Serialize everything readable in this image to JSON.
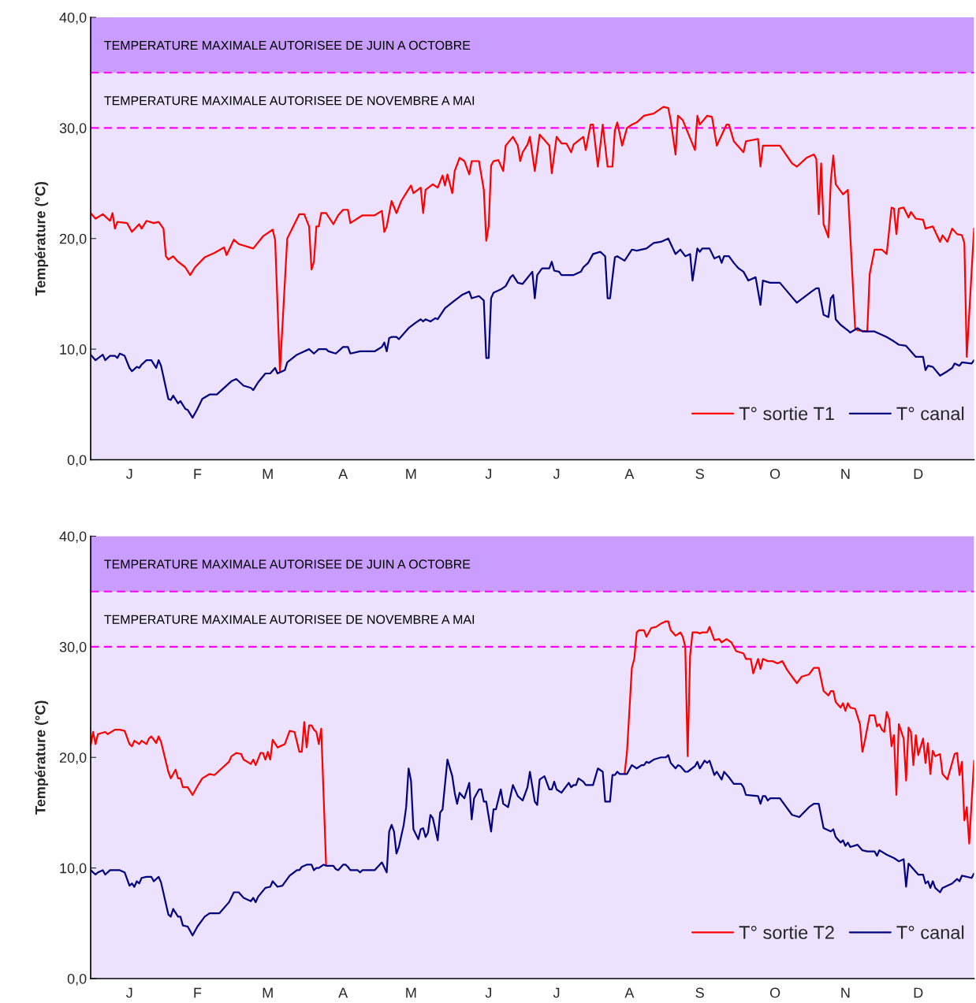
{
  "chart_data": [
    {
      "type": "line",
      "ylabel": "Température (°C)",
      "ylim": [
        0,
        40
      ],
      "categories": [
        null,
        null,
        null,
        null,
        null,
        null,
        null,
        null,
        null,
        null,
        null,
        null,
        null,
        null,
        null,
        null,
        "J",
        null,
        null,
        null,
        null,
        null,
        null,
        null,
        null,
        null,
        null,
        null,
        null,
        null,
        null,
        null,
        null,
        null,
        null,
        null,
        null,
        null,
        null,
        null,
        null,
        null,
        null,
        null,
        "F",
        null,
        null,
        null,
        null,
        null,
        null,
        null,
        null,
        null,
        null,
        null,
        null,
        null,
        null,
        null,
        null,
        null,
        null,
        null,
        null,
        null,
        null,
        null,
        null,
        null,
        null,
        null,
        null,
        "M",
        null,
        null,
        null,
        null,
        null,
        null,
        null,
        null,
        null,
        null,
        null,
        null,
        null,
        null,
        null,
        null,
        null,
        null,
        null,
        null,
        null,
        null,
        null,
        null,
        null,
        null,
        null,
        null,
        null,
        null,
        "A",
        null,
        null,
        null,
        null,
        null,
        null,
        null,
        null,
        null,
        null,
        null,
        null,
        null,
        null,
        null,
        null,
        null,
        null,
        null,
        null,
        null,
        null,
        null,
        null,
        null,
        null,
        null,
        "M",
        null,
        null,
        null,
        null,
        null,
        null,
        null,
        null,
        null,
        null,
        null,
        null,
        null,
        null,
        null,
        null,
        null,
        null,
        null,
        null,
        null,
        null,
        null,
        null,
        null,
        null,
        null,
        null,
        null,
        null,
        null,
        "J",
        null,
        null,
        null,
        null,
        null,
        null,
        null,
        null,
        null,
        null,
        null,
        null,
        null,
        null,
        null,
        null,
        null,
        null,
        null,
        null,
        null,
        null,
        null,
        null,
        null,
        null,
        null,
        "J",
        null,
        null,
        null,
        null,
        null,
        null,
        null,
        null,
        null,
        null,
        null,
        null,
        null,
        null,
        null,
        null,
        null,
        null,
        null,
        null,
        null,
        null,
        null,
        null,
        null,
        null,
        null,
        null,
        null,
        "A",
        null,
        null,
        null,
        null,
        null,
        null,
        null,
        null,
        null,
        null,
        null,
        null,
        null,
        null,
        null,
        null,
        null,
        null,
        null,
        null,
        null,
        null,
        null,
        null,
        null,
        null,
        null,
        null,
        "S",
        null,
        null,
        null,
        null,
        null,
        null,
        null,
        null,
        null,
        null,
        null,
        null,
        null,
        null,
        null,
        null,
        null,
        null,
        null,
        null,
        null,
        null,
        null,
        null,
        null,
        null,
        null,
        null,
        null,
        null,
        "O",
        null,
        null,
        null,
        null,
        null,
        null,
        null,
        null,
        null,
        null,
        null,
        null,
        null,
        null,
        null,
        null,
        null,
        null,
        null,
        null,
        null,
        null,
        null,
        null,
        null,
        null,
        null,
        null,
        "N",
        null,
        null,
        null,
        null,
        null,
        null,
        null,
        null,
        null,
        null,
        null,
        null,
        null,
        null,
        null,
        null,
        null,
        null,
        null,
        null,
        null,
        null,
        null,
        null,
        null,
        null,
        null,
        null,
        null,
        "D",
        null,
        null,
        null,
        null,
        null,
        null,
        null,
        null,
        null,
        null,
        null,
        null,
        null,
        null,
        null,
        null,
        null,
        null,
        null,
        null,
        null,
        null,
        null
      ],
      "yticks": [
        {
          "value": 0,
          "label": "0,0"
        },
        {
          "value": 10,
          "label": "10,0"
        },
        {
          "value": 20,
          "label": "20,0"
        },
        {
          "value": 30,
          "label": "30,0"
        },
        {
          "value": 40,
          "label": "40,0"
        }
      ],
      "legend": "bottom right",
      "grid": false,
      "marker": "none",
      "bands": [
        {
          "axis": "y",
          "from": 35,
          "to": 40,
          "color": "#c99cff"
        }
      ],
      "ref_lines": [
        {
          "axis": "y",
          "value": 35,
          "label": "TEMPERATURE MAXIMALE AUTORISEE DE JUIN A OCTOBRE",
          "color": "#ff00ff",
          "line_style": "dashed"
        },
        {
          "axis": "y",
          "value": 30,
          "label": "TEMPERATURE MAXIMALE AUTORISEE DE NOVEMBRE A MAI",
          "color": "#ff00ff",
          "line_style": "dashed"
        }
      ],
      "series": [
        {
          "name": "T° sortie T1",
          "color": "#ff0000",
          "values": [
            22.3,
            null,
            21.8,
            null,
            null,
            22.2,
            null,
            null,
            21.6,
            22.3,
            20.9,
            21.5,
            null,
            null,
            null,
            21.4,
            null,
            20.6,
            null,
            null,
            21.3,
            20.9,
            null,
            21.6,
            null,
            null,
            21.4,
            null,
            21.5,
            null,
            20.9,
            18.4,
            18.1,
            null,
            18.4,
            null,
            17.9,
            null,
            null,
            17.4,
            null,
            16.7,
            null,
            17.4,
            null,
            null,
            null,
            18.3,
            null,
            null,
            null,
            18.7,
            null,
            null,
            null,
            19.2,
            18.5,
            null,
            null,
            19.9,
            null,
            19.5,
            null,
            null,
            null,
            null,
            null,
            19.1,
            null,
            null,
            null,
            20.2,
            null,
            null,
            null,
            20.8,
            19.9,
            null,
            8.0,
            null,
            null,
            20.0,
            null,
            null,
            null,
            null,
            22.2,
            null,
            22.2,
            null,
            21.1,
            17.2,
            17.9,
            21.1,
            21.1,
            22.3,
            null,
            22.3,
            null,
            null,
            21.3,
            null,
            22.1,
            null,
            22.6,
            null,
            22.6,
            21.4,
            null,
            null,
            null,
            null,
            22.1,
            null,
            null,
            null,
            null,
            22.1,
            null,
            null,
            22.5,
            20.6,
            21.1,
            null,
            23.4,
            null,
            22.3,
            null,
            23.4,
            null,
            24.1,
            null,
            24.8,
            24.1,
            null,
            null,
            24.6,
            22.3,
            24.4,
            null,
            null,
            24.9,
            null,
            24.6,
            null,
            25.7,
            24.8,
            25.8,
            null,
            24.1,
            26.1,
            null,
            27.3,
            null,
            27.0,
            null,
            25.8,
            27.0,
            null,
            null,
            27.0,
            null,
            24.4,
            19.8,
            21.1,
            26.6,
            27.0,
            null,
            27.1,
            null,
            26.1,
            28.4,
            null,
            null,
            29.2,
            null,
            28.4,
            27.0,
            27.8,
            null,
            28.5,
            29.2,
            null,
            26.1,
            null,
            29.4,
            null,
            null,
            null,
            28.4,
            25.9,
            null,
            29.2,
            null,
            28.6,
            null,
            28.6,
            null,
            27.8,
            28.5,
            null,
            null,
            null,
            29.2,
            28.0,
            null,
            30.3,
            30.3,
            null,
            26.5,
            null,
            30.3,
            null,
            26.5,
            null,
            26.5,
            29.8,
            30.5,
            null,
            28.4,
            null,
            30.0,
            null,
            30.3,
            null,
            30.5,
            null,
            null,
            31.1,
            null,
            null,
            null,
            31.3,
            null,
            null,
            null,
            31.9,
            null,
            31.8,
            30.7,
            null,
            27.6,
            31.1,
            null,
            30.7,
            null,
            null,
            null,
            null,
            28.0,
            31.1,
            30.3,
            null,
            null,
            31.1,
            null,
            31.0,
            null,
            28.4,
            null,
            null,
            null,
            30.3,
            30.3,
            null,
            28.8,
            null,
            null,
            null,
            27.8,
            28.8,
            null,
            null,
            null,
            null,
            29.0,
            26.5,
            28.4,
            null,
            null,
            null,
            null,
            null,
            null,
            28.4,
            null,
            null,
            null,
            null,
            26.8,
            null,
            26.5,
            null,
            null,
            null,
            27.3,
            null,
            null,
            27.6,
            27.2,
            22.2,
            26.8,
            21.3,
            null,
            20.1,
            25.3,
            27.5,
            24.9,
            null,
            null,
            24.0,
            null,
            24.4,
            null,
            null,
            11.9,
            11.7,
            null,
            null,
            null,
            11.6,
            16.8,
            null,
            19.0,
            null,
            null,
            19.0,
            null,
            18.6,
            null,
            22.8,
            22.7,
            20.4,
            22.7,
            null,
            22.8,
            null,
            21.9,
            22.4,
            null,
            21.8,
            null,
            null,
            21.7,
            20.9,
            null,
            null,
            21.1,
            null,
            null,
            19.7,
            20.3,
            null,
            19.7,
            null,
            20.9,
            null,
            20.4,
            null,
            20.3,
            19.6,
            9.3,
            null,
            null,
            20.9
          ]
        },
        {
          "name": "T° canal",
          "color": "#000080",
          "values": [
            9.5,
            null,
            9.0,
            null,
            null,
            9.5,
            9.0,
            null,
            9.4,
            null,
            9.4,
            9.2,
            9.6,
            null,
            9.4,
            null,
            8.3,
            8.0,
            null,
            8.4,
            8.3,
            8.6,
            null,
            9.0,
            null,
            9.0,
            null,
            8.3,
            9.0,
            8.5,
            null,
            null,
            5.5,
            5.4,
            5.8,
            null,
            5.1,
            5.3,
            null,
            4.6,
            4.5,
            null,
            3.8,
            null,
            4.6,
            null,
            5.5,
            null,
            null,
            5.9,
            null,
            null,
            5.9,
            null,
            null,
            null,
            null,
            null,
            7.1,
            null,
            7.3,
            null,
            null,
            6.7,
            null,
            null,
            6.5,
            6.3,
            null,
            7.0,
            null,
            null,
            7.8,
            null,
            7.8,
            null,
            8.3,
            7.8,
            null,
            null,
            8.1,
            8.8,
            null,
            null,
            null,
            9.5,
            null,
            null,
            9.8,
            null,
            10.0,
            null,
            9.6,
            null,
            10.0,
            null,
            null,
            10.0,
            9.8,
            null,
            null,
            9.6,
            null,
            null,
            10.2,
            null,
            10.2,
            9.6,
            null,
            null,
            null,
            9.8,
            null,
            null,
            null,
            null,
            null,
            9.8,
            null,
            null,
            10.2,
            10.6,
            9.8,
            11.0,
            11.1,
            null,
            11.1,
            10.9,
            null,
            null,
            null,
            11.9,
            null,
            null,
            12.4,
            null,
            12.7,
            12.5,
            12.7,
            null,
            12.5,
            null,
            12.8,
            12.7,
            null,
            null,
            13.7,
            null,
            null,
            null,
            14.4,
            null,
            null,
            14.9,
            null,
            null,
            15.2,
            14.6,
            null,
            null,
            14.8,
            null,
            14.4,
            9.2,
            9.2,
            14.6,
            15.1,
            null,
            null,
            15.4,
            null,
            15.7,
            null,
            16.5,
            16.7,
            null,
            16.0,
            null,
            15.9,
            null,
            null,
            null,
            17.0,
            14.6,
            16.7,
            null,
            17.3,
            null,
            null,
            17.3,
            17.9,
            17.1,
            null,
            17.0,
            16.7,
            null,
            null,
            null,
            null,
            16.7,
            null,
            null,
            17.0,
            17.4,
            null,
            17.8,
            null,
            18.6,
            null,
            null,
            18.8,
            null,
            18.4,
            14.6,
            14.6,
            null,
            18.3,
            18.4,
            null,
            null,
            18.0,
            null,
            null,
            19.0,
            null,
            18.9,
            null,
            null,
            null,
            19.1,
            null,
            null,
            19.6,
            null,
            null,
            19.7,
            null,
            null,
            20.0,
            null,
            null,
            18.6,
            null,
            19.0,
            null,
            18.4,
            null,
            18.6,
            16.2,
            null,
            19.1,
            18.8,
            19.1,
            null,
            null,
            19.1,
            null,
            18.2,
            null,
            18.4,
            17.8,
            18.4,
            null,
            18.4,
            null,
            17.8,
            null,
            17.3,
            null,
            17.0,
            null,
            16.2,
            null,
            null,
            16.5,
            null,
            14.0,
            16.2,
            null,
            null,
            16.0,
            null,
            null,
            null,
            16.0,
            null,
            null,
            null,
            null,
            14.7,
            null,
            14.2,
            null,
            null,
            14.7,
            null,
            null,
            15.2,
            null,
            15.5,
            15.5,
            null,
            13.1,
            null,
            12.9,
            14.6,
            14.9,
            12.7,
            null,
            12.2,
            null,
            null,
            11.7,
            11.5,
            null,
            null,
            11.9,
            null,
            11.6,
            null,
            null,
            null,
            null,
            11.6,
            null,
            null,
            null,
            null,
            11.1,
            null,
            null,
            10.7,
            null,
            10.4,
            null,
            null,
            10.3,
            null,
            null,
            null,
            9.3,
            null,
            null,
            9.3,
            8.1,
            8.5,
            null,
            8.4,
            null,
            null,
            7.6,
            null,
            null,
            8.0,
            null,
            8.3,
            8.7,
            null,
            8.5,
            8.8,
            null,
            null,
            null,
            8.7,
            9.0
          ]
        }
      ]
    },
    {
      "type": "line",
      "ylabel": "Température (°C)",
      "ylim": [
        0,
        40
      ],
      "categories": [
        null,
        null,
        null,
        null,
        null,
        null,
        null,
        null,
        null,
        null,
        null,
        null,
        null,
        null,
        null,
        null,
        "J",
        null,
        null,
        null,
        null,
        null,
        null,
        null,
        null,
        null,
        null,
        null,
        null,
        null,
        null,
        null,
        null,
        null,
        null,
        null,
        null,
        null,
        null,
        null,
        null,
        null,
        null,
        null,
        "F",
        null,
        null,
        null,
        null,
        null,
        null,
        null,
        null,
        null,
        null,
        null,
        null,
        null,
        null,
        null,
        null,
        null,
        null,
        null,
        null,
        null,
        null,
        null,
        null,
        null,
        null,
        null,
        null,
        "M",
        null,
        null,
        null,
        null,
        null,
        null,
        null,
        null,
        null,
        null,
        null,
        null,
        null,
        null,
        null,
        null,
        null,
        null,
        null,
        null,
        null,
        null,
        null,
        null,
        null,
        null,
        null,
        null,
        null,
        null,
        "A",
        null,
        null,
        null,
        null,
        null,
        null,
        null,
        null,
        null,
        null,
        null,
        null,
        null,
        null,
        null,
        null,
        null,
        null,
        null,
        null,
        null,
        null,
        null,
        null,
        null,
        null,
        null,
        "M",
        null,
        null,
        null,
        null,
        null,
        null,
        null,
        null,
        null,
        null,
        null,
        null,
        null,
        null,
        null,
        null,
        null,
        null,
        null,
        null,
        null,
        null,
        null,
        null,
        null,
        null,
        null,
        null,
        null,
        null,
        null,
        "J",
        null,
        null,
        null,
        null,
        null,
        null,
        null,
        null,
        null,
        null,
        null,
        null,
        null,
        null,
        null,
        null,
        null,
        null,
        null,
        null,
        null,
        null,
        null,
        null,
        null,
        null,
        null,
        "J",
        null,
        null,
        null,
        null,
        null,
        null,
        null,
        null,
        null,
        null,
        null,
        null,
        null,
        null,
        null,
        null,
        null,
        null,
        null,
        null,
        null,
        null,
        null,
        null,
        null,
        null,
        null,
        null,
        null,
        "A",
        null,
        null,
        null,
        null,
        null,
        null,
        null,
        null,
        null,
        null,
        null,
        null,
        null,
        null,
        null,
        null,
        null,
        null,
        null,
        null,
        null,
        null,
        null,
        null,
        null,
        null,
        null,
        null,
        "S",
        null,
        null,
        null,
        null,
        null,
        null,
        null,
        null,
        null,
        null,
        null,
        null,
        null,
        null,
        null,
        null,
        null,
        null,
        null,
        null,
        null,
        null,
        null,
        null,
        null,
        null,
        null,
        null,
        null,
        null,
        "O",
        null,
        null,
        null,
        null,
        null,
        null,
        null,
        null,
        null,
        null,
        null,
        null,
        null,
        null,
        null,
        null,
        null,
        null,
        null,
        null,
        null,
        null,
        null,
        null,
        null,
        null,
        null,
        null,
        "N",
        null,
        null,
        null,
        null,
        null,
        null,
        null,
        null,
        null,
        null,
        null,
        null,
        null,
        null,
        null,
        null,
        null,
        null,
        null,
        null,
        null,
        null,
        null,
        null,
        null,
        null,
        null,
        null,
        null,
        "D",
        null,
        null,
        null,
        null,
        null,
        null,
        null,
        null,
        null,
        null,
        null,
        null,
        null,
        null,
        null,
        null,
        null,
        null,
        null,
        null,
        null,
        null,
        null
      ],
      "yticks": [
        {
          "value": 0,
          "label": "0,0"
        },
        {
          "value": 10,
          "label": "10,0"
        },
        {
          "value": 20,
          "label": "20,0"
        },
        {
          "value": 30,
          "label": "30,0"
        },
        {
          "value": 40,
          "label": "40,0"
        }
      ],
      "legend": "bottom right",
      "grid": false,
      "marker": "none",
      "bands": [
        {
          "axis": "y",
          "from": 35,
          "to": 40,
          "color": "#c99cff"
        }
      ],
      "ref_lines": [
        {
          "axis": "y",
          "value": 35,
          "label": "TEMPERATURE MAXIMALE AUTORISEE DE JUIN A OCTOBRE",
          "color": "#ff00ff",
          "line_style": "dashed"
        },
        {
          "axis": "y",
          "value": 30,
          "label": "TEMPERATURE MAXIMALE AUTORISEE DE NOVEMBRE A MAI",
          "color": "#ff00ff",
          "line_style": "dashed"
        }
      ],
      "series": [
        {
          "name": "T° sortie T2",
          "color": "#ff0000",
          "values": [
            21.1,
            22.3,
            21.2,
            22.1,
            null,
            null,
            22.3,
            22.1,
            null,
            null,
            22.5,
            null,
            22.5,
            null,
            22.4,
            null,
            21.2,
            21.0,
            21.5,
            null,
            21.2,
            21.5,
            null,
            21.2,
            21.7,
            21.9,
            null,
            21.3,
            21.9,
            21.4,
            null,
            null,
            18.7,
            18.1,
            null,
            18.9,
            18.1,
            18.1,
            17.3,
            null,
            17.3,
            null,
            16.6,
            null,
            17.4,
            null,
            18.1,
            null,
            null,
            18.5,
            null,
            18.4,
            null,
            null,
            19.0,
            null,
            null,
            19.6,
            20.1,
            null,
            20.4,
            null,
            20.3,
            19.8,
            null,
            null,
            19.4,
            19.8,
            19.3,
            null,
            20.4,
            20.4,
            19.8,
            20.5,
            19.8,
            21.6,
            null,
            20.9,
            null,
            null,
            21.2,
            null,
            22.4,
            null,
            22.3,
            null,
            20.5,
            20.5,
            23.2,
            20.9,
            22.9,
            22.9,
            22.5,
            22.3,
            21.2,
            22.6,
            null,
            10.3,
            null,
            null,
            null,
            null,
            null,
            null,
            null,
            null,
            null,
            null,
            null,
            null,
            null,
            null,
            null,
            null,
            null,
            null,
            null,
            null,
            null,
            null,
            null,
            null,
            null,
            null,
            null,
            null,
            null,
            null,
            null,
            null,
            null,
            null,
            null,
            null,
            null,
            null,
            null,
            null,
            null,
            null,
            null,
            null,
            null,
            null,
            null,
            null,
            null,
            null,
            null,
            null,
            null,
            null,
            null,
            null,
            null,
            null,
            null,
            null,
            null,
            null,
            null,
            null,
            null,
            null,
            null,
            null,
            null,
            null,
            null,
            null,
            null,
            null,
            null,
            null,
            null,
            null,
            null,
            null,
            null,
            null,
            null,
            null,
            null,
            null,
            null,
            null,
            null,
            null,
            null,
            null,
            null,
            null,
            null,
            null,
            null,
            null,
            null,
            null,
            null,
            null,
            null,
            null,
            null,
            null,
            null,
            null,
            null,
            null,
            null,
            null,
            null,
            null,
            null,
            null,
            null,
            null,
            null,
            null,
            null,
            null,
            18.5,
            20.5,
            null,
            28.1,
            28.9,
            31.3,
            31.5,
            null,
            31.5,
            30.9,
            null,
            31.7,
            null,
            31.8,
            null,
            32.1,
            null,
            32.3,
            32.3,
            31.5,
            null,
            31.0,
            null,
            31.3,
            30.9,
            30.0,
            20.1,
            29.2,
            31.3,
            null,
            31.3,
            31.2,
            31.3,
            null,
            31.3,
            31.8,
            null,
            30.6,
            null,
            30.7,
            30.4,
            null,
            30.7,
            null,
            30.4,
            null,
            29.6,
            null,
            null,
            29.4,
            28.9,
            null,
            28.9,
            27.6,
            null,
            28.9,
            28.0,
            28.9,
            null,
            28.7,
            null,
            28.7,
            null,
            28.5,
            null,
            28.7,
            null,
            27.9,
            null,
            null,
            27.0,
            26.7,
            null,
            27.3,
            null,
            null,
            27.5,
            null,
            28.1,
            null,
            28.1,
            null,
            26.0,
            null,
            25.6,
            26.0,
            26.0,
            25.0,
            null,
            24.5,
            24.9,
            24.2,
            24.9,
            24.5,
            null,
            24.4,
            null,
            23.0,
            20.5,
            21.5,
            null,
            23.8,
            null,
            23.8,
            22.8,
            23.0,
            22.5,
            22.3,
            24.1,
            23.5,
            21.0,
            22.0,
            16.6,
            23.0,
            null,
            21.7,
            17.9,
            22.7,
            22.3,
            19.3,
            22.0,
            20.2,
            null,
            21.7,
            19.5,
            21.3,
            18.5,
            20.6,
            20.1,
            null,
            20.3,
            18.5,
            null,
            18.0,
            null,
            null,
            20.3,
            20.4,
            18.4,
            19.6,
            14.3,
            15.5,
            12.2,
            null,
            19.7
          ]
        },
        {
          "name": "T° canal",
          "color": "#000080",
          "values": [
            9.8,
            null,
            9.4,
            9.6,
            null,
            9.8,
            9.4,
            null,
            9.8,
            null,
            null,
            null,
            9.8,
            null,
            9.6,
            null,
            8.4,
            8.6,
            8.3,
            8.8,
            8.6,
            9.1,
            null,
            9.2,
            null,
            9.2,
            8.8,
            null,
            9.2,
            8.7,
            null,
            null,
            5.8,
            5.6,
            6.3,
            null,
            5.6,
            5.6,
            4.8,
            null,
            4.7,
            null,
            3.9,
            null,
            4.7,
            null,
            null,
            5.6,
            null,
            5.9,
            null,
            null,
            null,
            5.9,
            null,
            null,
            null,
            6.9,
            null,
            7.8,
            null,
            7.8,
            null,
            7.3,
            null,
            null,
            7.0,
            7.3,
            6.9,
            7.4,
            null,
            null,
            8.2,
            null,
            8.3,
            8.8,
            null,
            8.3,
            null,
            8.4,
            null,
            null,
            9.3,
            null,
            null,
            9.8,
            9.8,
            10.1,
            null,
            10.3,
            null,
            10.3,
            9.8,
            10.0,
            10.0,
            null,
            10.3,
            10.2,
            null,
            null,
            10.2,
            9.9,
            9.8,
            null,
            10.3,
            10.3,
            10.1,
            9.8,
            null,
            null,
            9.8,
            9.6,
            9.8,
            null,
            null,
            null,
            null,
            9.8,
            null,
            null,
            10.5,
            null,
            9.6,
            13.3,
            13.9,
            13.3,
            11.3,
            11.9,
            null,
            13.9,
            15.5,
            19.0,
            17.9,
            13.5,
            null,
            12.6,
            13.5,
            13.6,
            12.8,
            13.2,
            14.8,
            14.5,
            null,
            12.5,
            15.0,
            15.3,
            null,
            19.8,
            null,
            18.3,
            16.8,
            15.8,
            16.8,
            null,
            16.3,
            null,
            17.7,
            14.4,
            16.3,
            null,
            17.1,
            17.1,
            16.0,
            16.0,
            null,
            13.3,
            15.3,
            15.3,
            null,
            17.1,
            15.8,
            null,
            15.5,
            null,
            17.5,
            null,
            16.5,
            null,
            16.1,
            null,
            17.3,
            18.7,
            null,
            16.0,
            15.7,
            18.0,
            null,
            18.3,
            null,
            17.1,
            17.1,
            17.8,
            17.1,
            null,
            16.8,
            17.1,
            null,
            17.7,
            17.3,
            17.5,
            17.5,
            18.1,
            null,
            17.8,
            17.5,
            null,
            null,
            17.5,
            null,
            19.0,
            null,
            18.7,
            16.0,
            null,
            16.0,
            18.4,
            18.4,
            18.7,
            18.5,
            null,
            null,
            18.5,
            null,
            19.3,
            null,
            19.0,
            null,
            19.3,
            19.3,
            19.6,
            19.5,
            null,
            19.8,
            null,
            null,
            20.0,
            null,
            20.0,
            20.2,
            19.5,
            null,
            19.0,
            19.3,
            19.2,
            null,
            18.7,
            18.7,
            null,
            null,
            19.2,
            19.6,
            19.0,
            null,
            19.7,
            19.5,
            19.7,
            null,
            18.4,
            18.7,
            null,
            18.0,
            18.7,
            null,
            18.2,
            null,
            17.6,
            null,
            null,
            17.6,
            17.3,
            16.6,
            null,
            null,
            null,
            null,
            16.5,
            15.8,
            16.5,
            16.5,
            16.1,
            16.3,
            null,
            null,
            null,
            16.3,
            null,
            15.7,
            null,
            null,
            14.8,
            null,
            null,
            14.6,
            null,
            null,
            null,
            15.5,
            null,
            15.8,
            null,
            15.8,
            null,
            13.6,
            null,
            null,
            13.3,
            13.5,
            12.8,
            null,
            12.3,
            12.5,
            12.0,
            12.3,
            11.9,
            null,
            null,
            12.1,
            null,
            11.6,
            null,
            11.5,
            null,
            null,
            11.5,
            11.1,
            11.6,
            null,
            null,
            11.2,
            null,
            null,
            10.9,
            null,
            10.6,
            null,
            10.8,
            8.3,
            10.4,
            null,
            null,
            null,
            9.4,
            null,
            9.4,
            8.6,
            8.8,
            8.2,
            8.8,
            8.2,
            null,
            7.8,
            8.2,
            null,
            null,
            8.5,
            8.6,
            null,
            9.0,
            8.8,
            9.3,
            null,
            null,
            null,
            9.1,
            9.5
          ]
        }
      ]
    }
  ]
}
